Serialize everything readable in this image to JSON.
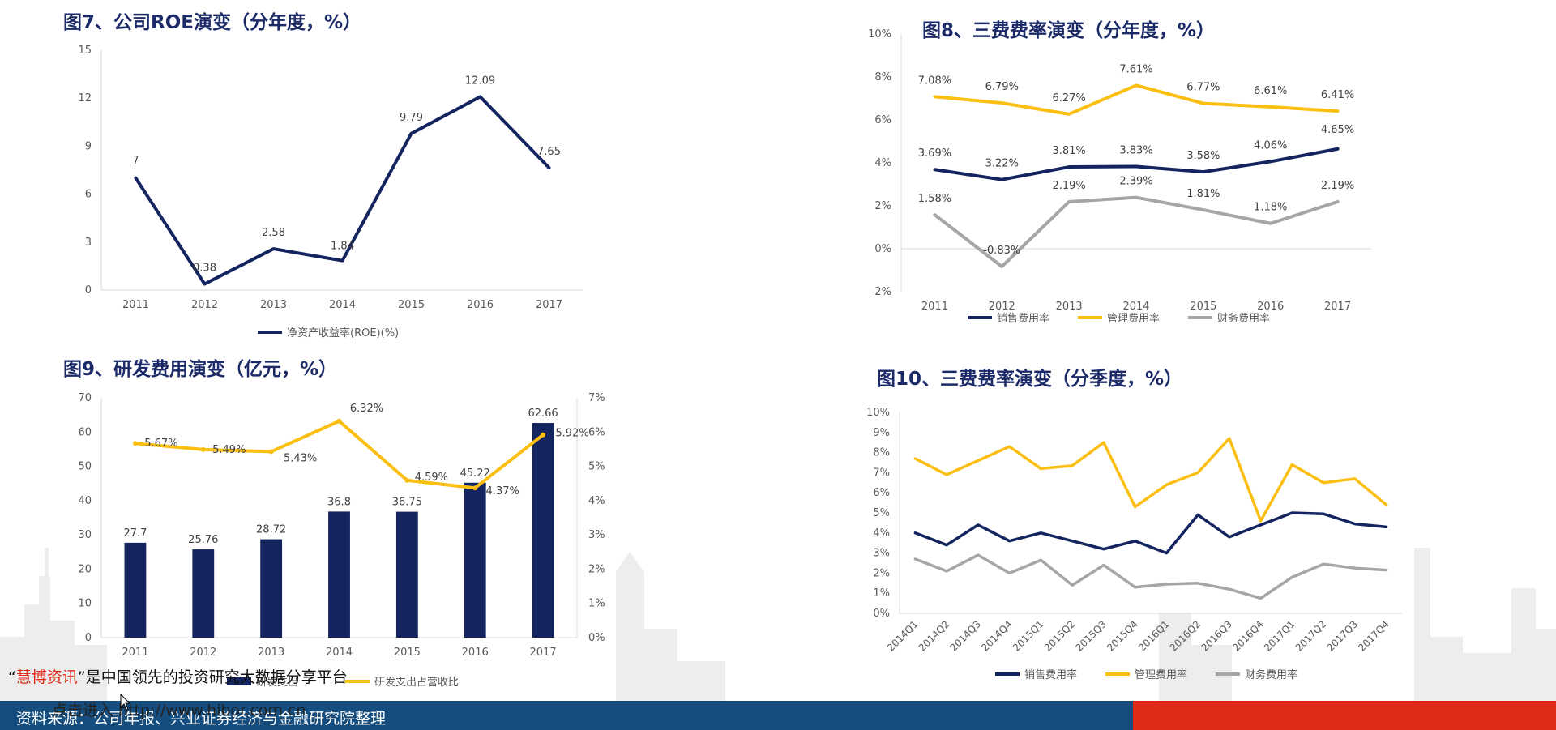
{
  "colors": {
    "navy": "#14245f",
    "gold": "#fbbf14",
    "gray": "#a6a6a6",
    "title": "#1c2b68",
    "footer_blue": "#154d7e",
    "footer_red": "#e02a18"
  },
  "figures": {
    "fig7": {
      "title": "图7、公司ROE演变（分年度，%）"
    },
    "fig8": {
      "title": "图8、三费费率演变（分年度，%）"
    },
    "fig9": {
      "title": "图9、研发费用演变（亿元，%）"
    },
    "fig10": {
      "title": "图10、三费费率演变（分季度，%）"
    }
  },
  "chart_data": [
    {
      "id": "fig7",
      "type": "line",
      "categories": [
        "2011",
        "2012",
        "2013",
        "2014",
        "2015",
        "2016",
        "2017"
      ],
      "series": [
        {
          "name": "净资产收益率(ROE)(%)",
          "values": [
            7,
            0.38,
            2.58,
            1.84,
            9.79,
            12.09,
            7.65
          ],
          "labels": [
            "7",
            "0.38",
            "2.58",
            "1.84",
            "9.79",
            "12.09",
            "7.65"
          ],
          "color": "#14245f"
        }
      ],
      "ylim": [
        0,
        15
      ],
      "yticks": [
        "0",
        "3",
        "6",
        "9",
        "12",
        "15"
      ],
      "legend": "bottom",
      "grid": false
    },
    {
      "id": "fig8",
      "type": "line",
      "categories": [
        "2011",
        "2012",
        "2013",
        "2014",
        "2015",
        "2016",
        "2017"
      ],
      "series": [
        {
          "name": "销售费用率",
          "values": [
            3.69,
            3.22,
            3.81,
            3.83,
            3.58,
            4.06,
            4.65
          ],
          "labels": [
            "3.69%",
            "3.22%",
            "3.81%",
            "3.83%",
            "3.58%",
            "4.06%",
            "4.65%"
          ],
          "color": "#14245f"
        },
        {
          "name": "管理费用率",
          "values": [
            7.08,
            6.79,
            6.27,
            7.61,
            6.77,
            6.61,
            6.41
          ],
          "labels": [
            "7.08%",
            "6.79%",
            "6.27%",
            "7.61%",
            "6.77%",
            "6.61%",
            "6.41%"
          ],
          "color": "#fbbf14"
        },
        {
          "name": "财务费用率",
          "values": [
            1.58,
            -0.83,
            2.19,
            2.39,
            1.81,
            1.18,
            2.19
          ],
          "labels": [
            "1.58%",
            "-0.83%",
            "2.19%",
            "2.39%",
            "1.81%",
            "1.18%",
            "2.19%"
          ],
          "color": "#a6a6a6"
        }
      ],
      "ylim": [
        -2,
        10
      ],
      "yticks": [
        "-2%",
        "0%",
        "2%",
        "4%",
        "6%",
        "8%",
        "10%"
      ],
      "legend": "bottom",
      "grid": false
    },
    {
      "id": "fig9",
      "type": "bar",
      "categories": [
        "2011",
        "2012",
        "2013",
        "2014",
        "2015",
        "2016",
        "2017"
      ],
      "series": [
        {
          "name": "研发支出",
          "kind": "bar",
          "axis": "left",
          "values": [
            27.7,
            25.76,
            28.72,
            36.8,
            36.75,
            45.22,
            62.66
          ],
          "labels": [
            "27.7",
            "25.76",
            "28.72",
            "36.8",
            "36.75",
            "45.22",
            "62.66"
          ],
          "color": "#14245f"
        },
        {
          "name": "研发支出占营收比",
          "kind": "line",
          "axis": "right",
          "values": [
            5.67,
            5.49,
            5.43,
            6.32,
            4.59,
            4.37,
            5.92
          ],
          "labels": [
            "5.67%",
            "5.49%",
            "5.43%",
            "6.32%",
            "4.59%",
            "4.37%",
            "5.92%"
          ],
          "color": "#fbbf14"
        }
      ],
      "ylim": [
        0,
        70
      ],
      "yticks": [
        "0",
        "10",
        "20",
        "30",
        "40",
        "50",
        "60",
        "70"
      ],
      "y2lim": [
        0,
        7
      ],
      "y2ticks": [
        "0%",
        "1%",
        "2%",
        "3%",
        "4%",
        "5%",
        "6%",
        "7%"
      ],
      "legend": "bottom",
      "grid": false
    },
    {
      "id": "fig10",
      "type": "line",
      "categories": [
        "2014Q1",
        "2014Q2",
        "2014Q3",
        "2014Q4",
        "2015Q1",
        "2015Q2",
        "2015Q3",
        "2015Q4",
        "2016Q1",
        "2016Q2",
        "2016Q3",
        "2016Q4",
        "2017Q1",
        "2017Q2",
        "2017Q3",
        "2017Q4"
      ],
      "series": [
        {
          "name": "销售费用率",
          "values": [
            4.0,
            3.4,
            4.4,
            3.6,
            4.0,
            3.6,
            3.2,
            3.6,
            3.0,
            4.9,
            3.8,
            4.4,
            5.0,
            4.95,
            4.45,
            4.3
          ],
          "color": "#14245f"
        },
        {
          "name": "管理费用率",
          "values": [
            7.7,
            6.9,
            7.6,
            8.3,
            7.2,
            7.35,
            8.5,
            5.3,
            6.4,
            7.0,
            8.7,
            4.6,
            7.4,
            6.5,
            6.7,
            5.4
          ],
          "color": "#fbbf14"
        },
        {
          "name": "财务费用率",
          "values": [
            2.7,
            2.1,
            2.9,
            2.0,
            2.65,
            1.4,
            2.4,
            1.3,
            1.45,
            1.5,
            1.2,
            0.75,
            1.8,
            2.45,
            2.25,
            2.15
          ],
          "color": "#a6a6a6"
        }
      ],
      "ylim": [
        0,
        10
      ],
      "yticks": [
        "0%",
        "1%",
        "2%",
        "3%",
        "4%",
        "5%",
        "6%",
        "7%",
        "8%",
        "9%",
        "10%"
      ],
      "legend": "bottom",
      "grid": false
    }
  ],
  "promo": {
    "quote_open": "“",
    "brand": "慧博资讯",
    "quote_close": "”",
    "text": "是中国领先的投资研究大数据分享平台"
  },
  "enter_link": "点击进入 http://www.hibor.com.cn",
  "footer": {
    "source": "资料来源：公司年报、兴业证券经济与金融研究院整理"
  }
}
